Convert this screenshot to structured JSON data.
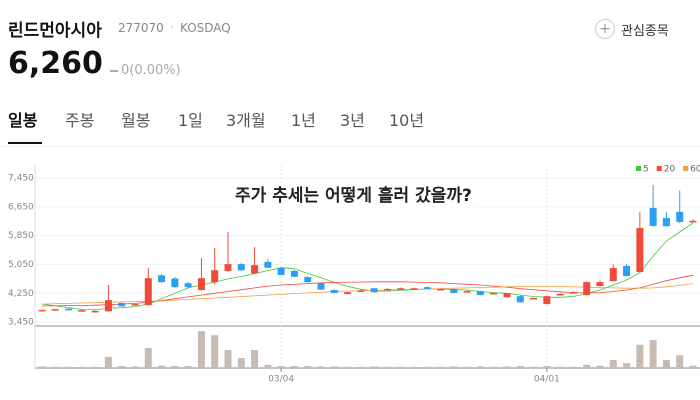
{
  "header": {
    "name": "린드먼아시아",
    "code": "277070",
    "market": "KOSDAQ",
    "watch": "관심종목",
    "price": "6,260",
    "change": "0(0.00%)"
  },
  "tabs": [
    "일봉",
    "주봉",
    "월봉",
    "1일",
    "3개월",
    "1년",
    "3년",
    "10년"
  ],
  "selected_tab": 0,
  "chart_data": {
    "type": "candlestick",
    "annotation": "주가 추세는 어떻게 흘러 갔을까?",
    "categories": [
      null,
      null,
      null,
      null,
      null,
      null,
      null,
      null,
      null,
      null,
      null,
      null,
      null,
      null,
      null,
      null,
      null,
      null,
      "03/04",
      null,
      null,
      null,
      null,
      null,
      null,
      null,
      null,
      null,
      null,
      null,
      null,
      null,
      null,
      null,
      null,
      null,
      null,
      null,
      "04/01",
      null,
      null,
      null,
      null,
      null,
      null,
      null,
      null,
      null,
      null,
      null
    ],
    "open": [
      3760,
      3800,
      3820,
      3780,
      3760,
      3750,
      3980,
      3950,
      3920,
      4750,
      4660,
      4530,
      4340,
      4560,
      4870,
      5060,
      4800,
      5120,
      4950,
      4870,
      4700,
      4530,
      4340,
      4230,
      4330,
      4390,
      4370,
      4390,
      4390,
      4420,
      4370,
      4370,
      4310,
      4310,
      4260,
      4140,
      4170,
      4120,
      3950,
      4230,
      4280,
      4200,
      4450,
      4590,
      5010,
      4840,
      6620,
      6340,
      6510,
      6260
    ],
    "high": [
      3800,
      3820,
      3830,
      3800,
      3780,
      4480,
      4000,
      3970,
      4950,
      4780,
      4700,
      4560,
      5230,
      5510,
      5950,
      5100,
      5530,
      5200,
      4980,
      4900,
      4720,
      4550,
      4360,
      4290,
      4350,
      4400,
      4390,
      4410,
      4410,
      4440,
      4380,
      4380,
      4330,
      4320,
      4270,
      4260,
      4190,
      4130,
      4190,
      4250,
      4300,
      4580,
      4600,
      5050,
      5060,
      6500,
      7260,
      6500,
      7100,
      6300
    ],
    "low": [
      3740,
      3790,
      3780,
      3770,
      3740,
      3740,
      3870,
      3930,
      3900,
      4540,
      4400,
      4400,
      4320,
      4500,
      4850,
      4870,
      4780,
      4950,
      4750,
      4700,
      4540,
      4340,
      4250,
      4220,
      4310,
      4270,
      4350,
      4380,
      4370,
      4360,
      4350,
      4250,
      4290,
      4190,
      4240,
      4130,
      3990,
      4100,
      3940,
      4210,
      4260,
      4190,
      4440,
      4580,
      4720,
      4830,
      6100,
      6100,
      6200,
      6250
    ],
    "close": [
      3790,
      3810,
      3790,
      3780,
      3760,
      4060,
      3890,
      3950,
      4670,
      4560,
      4420,
      4420,
      4670,
      4890,
      5060,
      4890,
      5030,
      4960,
      4760,
      4710,
      4560,
      4350,
      4260,
      4280,
      4330,
      4280,
      4370,
      4390,
      4390,
      4370,
      4370,
      4260,
      4310,
      4200,
      4260,
      4250,
      4000,
      4120,
      4170,
      4230,
      4280,
      4560,
      4560,
      4950,
      4730,
      6060,
      6120,
      6110,
      6230,
      6260
    ],
    "up_color": "#f04a3a",
    "down_color": "#2d9ff0",
    "volume": [
      4,
      3,
      3,
      3,
      3,
      28,
      5,
      4,
      50,
      6,
      5,
      5,
      92,
      82,
      45,
      25,
      45,
      8,
      5,
      5,
      5,
      4,
      4,
      3,
      3,
      4,
      3,
      3,
      3,
      3,
      3,
      4,
      3,
      4,
      3,
      4,
      5,
      3,
      5,
      3,
      3,
      8,
      6,
      20,
      12,
      58,
      70,
      20,
      32,
      6
    ],
    "volume_color": "#c8bbb4",
    "vlim": [
      0,
      100
    ],
    "series": [
      {
        "name": "5",
        "color": "#3cc73c",
        "values": [
          3950,
          3900,
          3850,
          3800,
          3790,
          3830,
          3850,
          3880,
          3950,
          4100,
          4250,
          4400,
          4480,
          4560,
          4650,
          4720,
          4800,
          4880,
          4960,
          4930,
          4800,
          4680,
          4550,
          4440,
          4360,
          4310,
          4310,
          4330,
          4350,
          4370,
          4370,
          4350,
          4340,
          4300,
          4270,
          4250,
          4200,
          4160,
          4140,
          4140,
          4160,
          4240,
          4340,
          4480,
          4620,
          4820,
          5280,
          5700,
          5950,
          6200
        ]
      },
      {
        "name": "20",
        "color": "#f04a3a",
        "values": [
          3900,
          3900,
          3910,
          3910,
          3920,
          3930,
          3950,
          3970,
          4000,
          4050,
          4100,
          4150,
          4200,
          4250,
          4300,
          4350,
          4400,
          4450,
          4480,
          4500,
          4520,
          4540,
          4550,
          4560,
          4560,
          4570,
          4570,
          4570,
          4560,
          4550,
          4540,
          4520,
          4500,
          4480,
          4450,
          4420,
          4380,
          4350,
          4320,
          4290,
          4270,
          4260,
          4270,
          4300,
          4340,
          4400,
          4500,
          4600,
          4680,
          4750
        ]
      },
      {
        "name": "60",
        "color": "#f0a040",
        "values": [
          3950,
          3960,
          3970,
          3980,
          3990,
          4000,
          4010,
          4020,
          4030,
          4040,
          4060,
          4080,
          4100,
          4120,
          4140,
          4160,
          4180,
          4200,
          4220,
          4240,
          4260,
          4280,
          4300,
          4310,
          4320,
          4330,
          4340,
          4350,
          4360,
          4370,
          4380,
          4390,
          4400,
          4410,
          4420,
          4430,
          4440,
          4440,
          4440,
          4440,
          4430,
          4420,
          4410,
          4400,
          4390,
          4390,
          4400,
          4430,
          4470,
          4520
        ]
      }
    ],
    "ylim": [
      3370,
      7810
    ],
    "yticks": [
      {
        "value": 3450,
        "label": "3,450"
      },
      {
        "value": 4250,
        "label": "4,250"
      },
      {
        "value": 5050,
        "label": "5,050"
      },
      {
        "value": 5850,
        "label": "5,850"
      },
      {
        "value": 6650,
        "label": "6,650"
      },
      {
        "value": 7450,
        "label": "7,450"
      }
    ],
    "grid": true
  }
}
